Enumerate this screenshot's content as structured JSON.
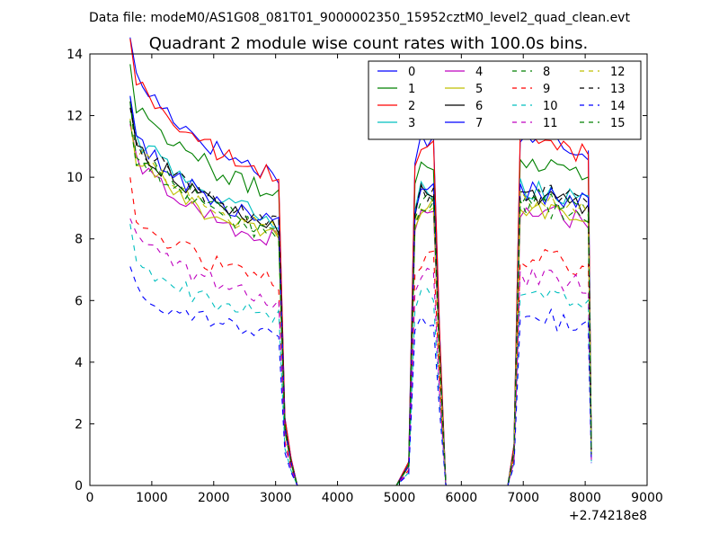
{
  "header": {
    "file_label": "Data file: modeM0/AS1G08_081T01_9000002350_15952cztM0_level2_quad_clean.evt"
  },
  "chart_data": {
    "type": "line",
    "title": "Quadrant 2 module wise count rates with 100.0s bins.",
    "xlabel": "",
    "ylabel": "",
    "x_offset_label": "+2.74218e8",
    "xlim": [
      0,
      9000
    ],
    "ylim": [
      0,
      14
    ],
    "x_ticks": [
      0,
      1000,
      2000,
      3000,
      4000,
      5000,
      6000,
      7000,
      8000,
      9000
    ],
    "y_ticks": [
      0,
      2,
      4,
      6,
      8,
      10,
      12,
      14
    ],
    "grid": false,
    "legend_placement": "top-right",
    "legend_columns": 4,
    "segments": [
      {
        "start": 650,
        "count": 25,
        "step": 100
      },
      {
        "start": 3150,
        "count": 3,
        "step": 100
      },
      {
        "start": 3350,
        "count": 17,
        "step": 100
      },
      {
        "start": 5150,
        "count": 6,
        "step": 100
      },
      {
        "start": 5750,
        "count": 11,
        "step": 100
      },
      {
        "start": 6850,
        "count": 13,
        "step": 100
      },
      {
        "start": 8050,
        "count": 2,
        "step": 50
      }
    ],
    "series": [
      {
        "name": "0",
        "color": "#0000ff",
        "dash": "solid",
        "level": 11.0
      },
      {
        "name": "1",
        "color": "#008000",
        "dash": "solid",
        "level": 10.3
      },
      {
        "name": "2",
        "color": "#ff0000",
        "dash": "solid",
        "level": 10.9
      },
      {
        "name": "3",
        "color": "#00bfbf",
        "dash": "solid",
        "level": 9.4
      },
      {
        "name": "4",
        "color": "#bf00bf",
        "dash": "solid",
        "level": 8.7
      },
      {
        "name": "5",
        "color": "#bfbf00",
        "dash": "solid",
        "level": 8.8
      },
      {
        "name": "6",
        "color": "#000000",
        "dash": "solid",
        "level": 9.2
      },
      {
        "name": "7",
        "color": "#0000ff",
        "dash": "solid",
        "level": 9.3
      },
      {
        "name": "8",
        "color": "#008000",
        "dash": "dashed",
        "level": 9.1
      },
      {
        "name": "9",
        "color": "#ff0000",
        "dash": "dashed",
        "level": 7.2
      },
      {
        "name": "10",
        "color": "#00bfbf",
        "dash": "dashed",
        "level": 6.0
      },
      {
        "name": "11",
        "color": "#bf00bf",
        "dash": "dashed",
        "level": 6.6
      },
      {
        "name": "12",
        "color": "#bfbf00",
        "dash": "dashed",
        "level": 9.0
      },
      {
        "name": "13",
        "color": "#000000",
        "dash": "dashed",
        "level": 9.3
      },
      {
        "name": "14",
        "color": "#0000ff",
        "dash": "dashed",
        "level": 5.3
      },
      {
        "name": "15",
        "color": "#008000",
        "dash": "dashed",
        "level": 8.9
      }
    ]
  }
}
